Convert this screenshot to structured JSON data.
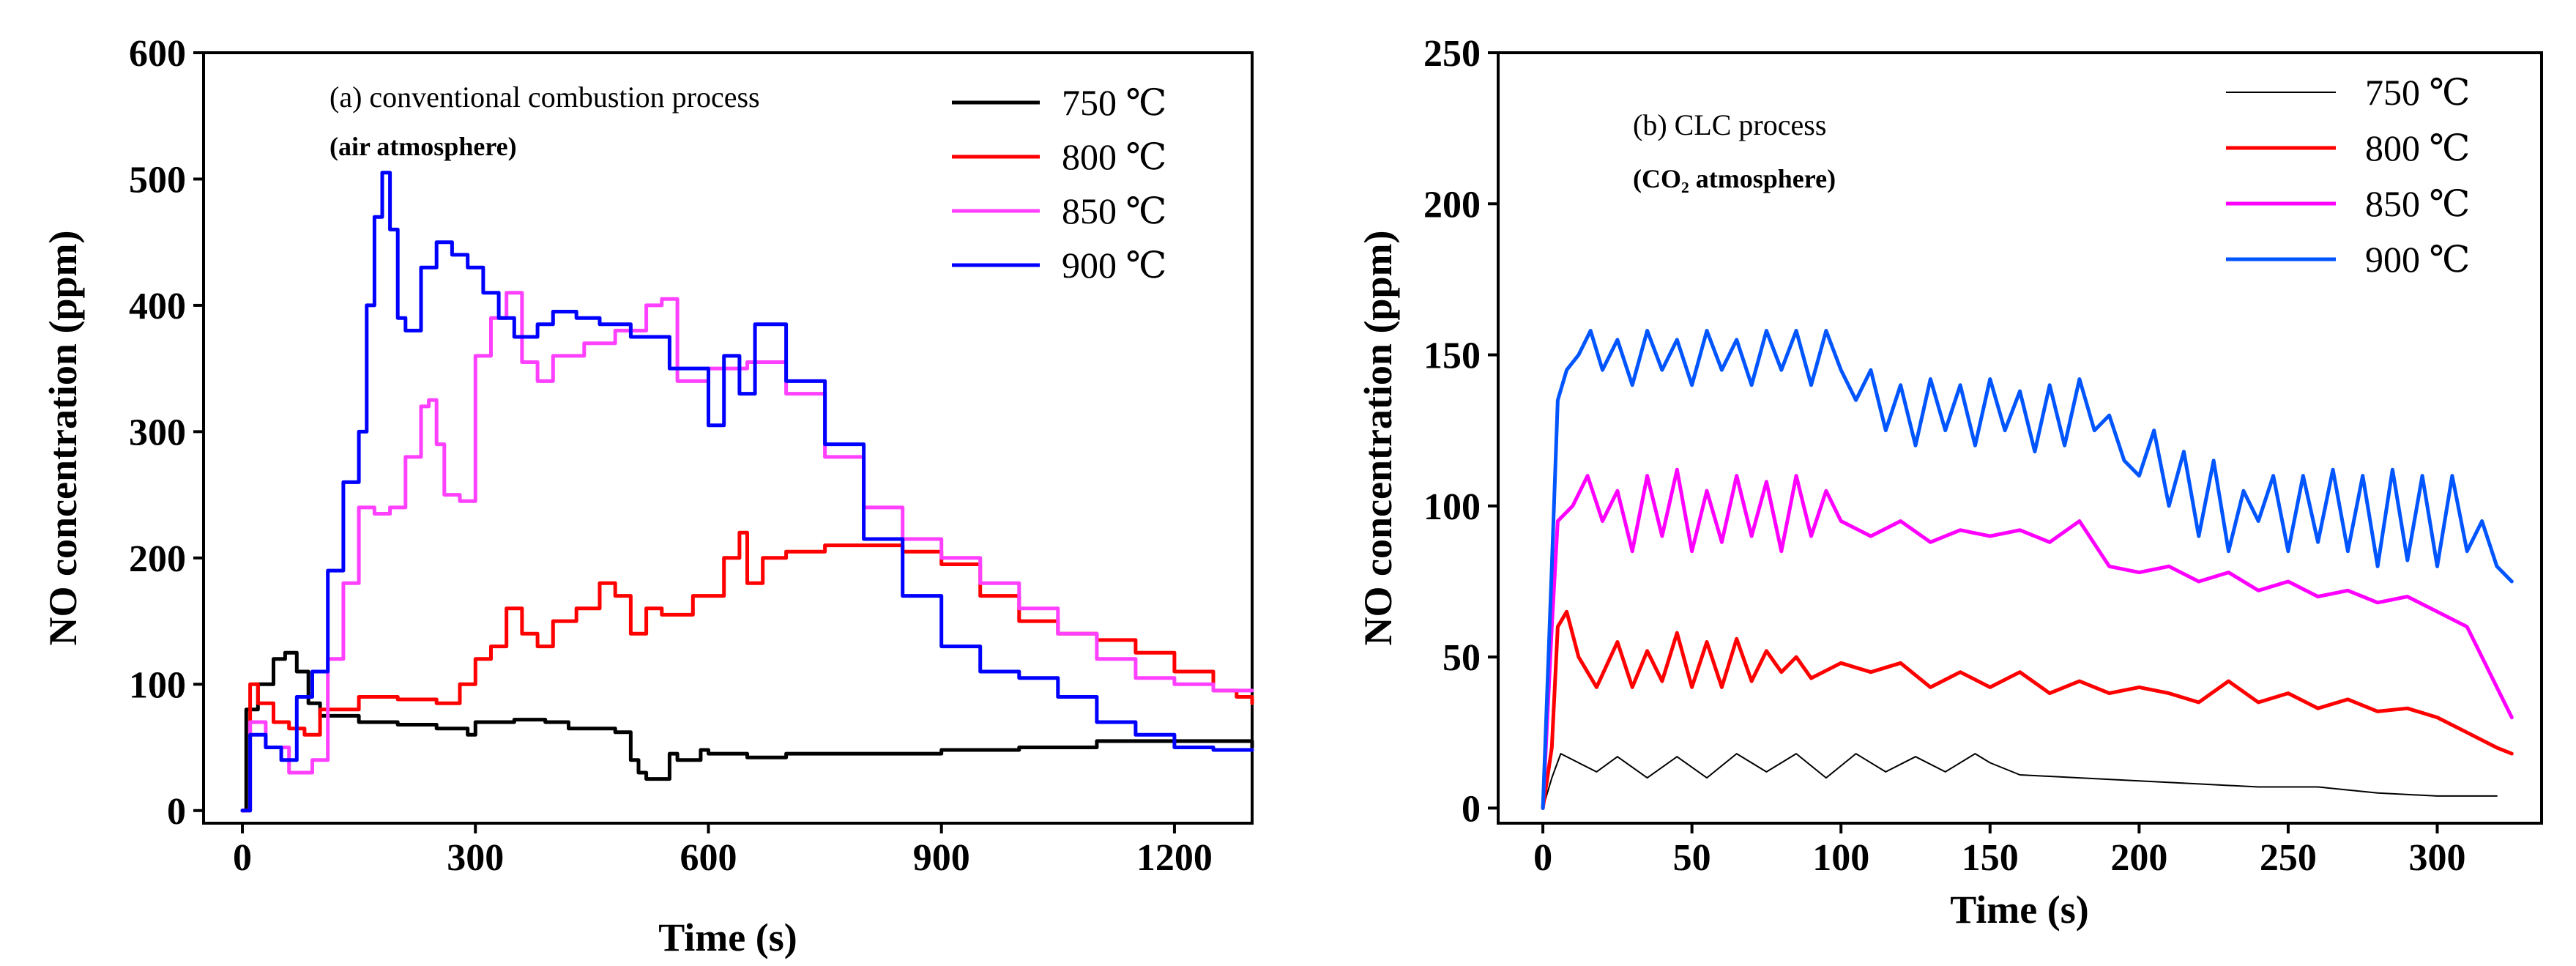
{
  "chart_data": [
    {
      "type": "line",
      "step": true,
      "title": "(a) conventional combustion process",
      "subtitle": "(air atmosphere)",
      "xlabel": "Time (s)",
      "ylabel": "NO concentration (ppm)",
      "xlim": [
        -50,
        1300
      ],
      "ylim": [
        -10,
        600
      ],
      "xticks": [
        0,
        300,
        600,
        900,
        1200
      ],
      "yticks": [
        0,
        100,
        200,
        300,
        400,
        500,
        600
      ],
      "xtick_labels": [
        "0",
        "300",
        "600",
        "900",
        "1200"
      ],
      "ytick_labels": [
        "0",
        "100",
        "200",
        "300",
        "400",
        "500",
        "600"
      ],
      "legend_position": "top-right",
      "series": [
        {
          "name": "750  ℃",
          "color": "#000000",
          "x": [
            0,
            5,
            20,
            40,
            55,
            70,
            85,
            100,
            150,
            200,
            250,
            290,
            300,
            350,
            390,
            420,
            480,
            500,
            510,
            520,
            550,
            560,
            590,
            600,
            650,
            700,
            800,
            900,
            1000,
            1100,
            1200,
            1300
          ],
          "y": [
            0,
            80,
            100,
            120,
            125,
            110,
            85,
            75,
            70,
            68,
            65,
            60,
            70,
            72,
            70,
            65,
            62,
            40,
            30,
            25,
            45,
            40,
            48,
            45,
            42,
            45,
            45,
            48,
            50,
            55,
            55,
            50
          ]
        },
        {
          "name": "800  ℃",
          "color": "#ff0000",
          "x": [
            0,
            10,
            20,
            40,
            60,
            80,
            100,
            150,
            200,
            250,
            280,
            300,
            320,
            340,
            360,
            380,
            400,
            430,
            460,
            480,
            500,
            520,
            540,
            580,
            620,
            640,
            650,
            670,
            700,
            750,
            800,
            850,
            900,
            950,
            1000,
            1050,
            1100,
            1150,
            1200,
            1250,
            1280,
            1300
          ],
          "y": [
            0,
            100,
            85,
            70,
            65,
            60,
            80,
            90,
            88,
            85,
            100,
            120,
            130,
            160,
            140,
            130,
            150,
            160,
            180,
            170,
            140,
            160,
            155,
            170,
            200,
            220,
            180,
            200,
            205,
            210,
            210,
            205,
            195,
            170,
            150,
            140,
            135,
            125,
            110,
            95,
            90,
            85
          ]
        },
        {
          "name": "850  ℃",
          "color": "#ff40ff",
          "x": [
            0,
            10,
            30,
            60,
            90,
            110,
            130,
            150,
            170,
            190,
            210,
            230,
            240,
            250,
            260,
            280,
            300,
            320,
            340,
            360,
            380,
            400,
            440,
            480,
            520,
            540,
            560,
            600,
            650,
            700,
            750,
            800,
            850,
            900,
            950,
            1000,
            1050,
            1100,
            1150,
            1200,
            1250,
            1300
          ],
          "y": [
            0,
            70,
            50,
            30,
            40,
            120,
            180,
            240,
            235,
            240,
            280,
            320,
            325,
            290,
            250,
            245,
            360,
            390,
            410,
            355,
            340,
            360,
            370,
            380,
            400,
            405,
            340,
            350,
            355,
            330,
            280,
            240,
            215,
            200,
            180,
            160,
            140,
            120,
            105,
            100,
            95,
            95
          ]
        },
        {
          "name": "900  ℃",
          "color": "#0000ff",
          "x": [
            0,
            10,
            30,
            50,
            70,
            90,
            110,
            130,
            150,
            160,
            170,
            180,
            190,
            200,
            210,
            230,
            250,
            270,
            290,
            310,
            330,
            350,
            380,
            400,
            430,
            460,
            500,
            550,
            600,
            620,
            640,
            660,
            700,
            750,
            800,
            850,
            900,
            950,
            1000,
            1050,
            1100,
            1150,
            1200,
            1250,
            1300
          ],
          "y": [
            0,
            60,
            50,
            40,
            90,
            110,
            190,
            260,
            300,
            400,
            470,
            505,
            460,
            390,
            380,
            430,
            450,
            440,
            430,
            410,
            390,
            375,
            385,
            395,
            390,
            385,
            375,
            350,
            305,
            360,
            330,
            385,
            340,
            290,
            215,
            170,
            130,
            110,
            105,
            90,
            70,
            60,
            50,
            48,
            48
          ]
        }
      ]
    },
    {
      "type": "line",
      "title": "(b) CLC process",
      "subtitle": "(CO₂ atmosphere)",
      "xlabel": "Time (s)",
      "ylabel": "NO concentration (ppm)",
      "xlim": [
        -15,
        335
      ],
      "ylim": [
        -5,
        250
      ],
      "xticks": [
        0,
        50,
        100,
        150,
        200,
        250,
        300
      ],
      "yticks": [
        0,
        50,
        100,
        150,
        200,
        250
      ],
      "xtick_labels": [
        "0",
        "50",
        "100",
        "150",
        "200",
        "250",
        "300"
      ],
      "ytick_labels": [
        "0",
        "50",
        "100",
        "150",
        "200",
        "250"
      ],
      "legend_position": "top-right",
      "series": [
        {
          "name": "750  ℃",
          "color": "#000000",
          "x": [
            0,
            3,
            6,
            10,
            18,
            25,
            35,
            45,
            55,
            65,
            75,
            85,
            95,
            105,
            115,
            125,
            135,
            145,
            150,
            160,
            180,
            200,
            220,
            240,
            260,
            280,
            300,
            320
          ],
          "y": [
            0,
            10,
            18,
            16,
            12,
            17,
            10,
            17,
            10,
            18,
            12,
            18,
            10,
            18,
            12,
            17,
            12,
            18,
            15,
            11,
            10,
            9,
            8,
            7,
            7,
            5,
            4,
            4
          ]
        },
        {
          "name": "800  ℃",
          "color": "#ff0000",
          "x": [
            0,
            3,
            5,
            8,
            12,
            18,
            25,
            30,
            35,
            40,
            45,
            50,
            55,
            60,
            65,
            70,
            75,
            80,
            85,
            90,
            100,
            110,
            120,
            130,
            140,
            150,
            160,
            170,
            180,
            190,
            200,
            210,
            220,
            230,
            240,
            250,
            260,
            270,
            280,
            290,
            300,
            310,
            320,
            325
          ],
          "y": [
            0,
            20,
            60,
            65,
            50,
            40,
            55,
            40,
            52,
            42,
            58,
            40,
            55,
            40,
            56,
            42,
            52,
            45,
            50,
            43,
            48,
            45,
            48,
            40,
            45,
            40,
            45,
            38,
            42,
            38,
            40,
            38,
            35,
            42,
            35,
            38,
            33,
            36,
            32,
            33,
            30,
            25,
            20,
            18
          ]
        },
        {
          "name": "850  ℃",
          "color": "#ff00ff",
          "x": [
            0,
            3,
            5,
            10,
            15,
            20,
            25,
            30,
            35,
            40,
            45,
            50,
            55,
            60,
            65,
            70,
            75,
            80,
            85,
            90,
            95,
            100,
            110,
            120,
            130,
            140,
            150,
            160,
            170,
            180,
            190,
            200,
            210,
            220,
            230,
            240,
            250,
            260,
            270,
            280,
            290,
            300,
            310,
            320,
            325
          ],
          "y": [
            0,
            60,
            95,
            100,
            110,
            95,
            105,
            85,
            110,
            90,
            112,
            85,
            105,
            88,
            110,
            90,
            108,
            85,
            110,
            90,
            105,
            95,
            90,
            95,
            88,
            92,
            90,
            92,
            88,
            95,
            80,
            78,
            80,
            75,
            78,
            72,
            75,
            70,
            72,
            68,
            70,
            65,
            60,
            40,
            30
          ]
        },
        {
          "name": "900  ℃",
          "color": "#0055ff",
          "x": [
            0,
            3,
            5,
            8,
            12,
            16,
            20,
            25,
            30,
            35,
            40,
            45,
            50,
            55,
            60,
            65,
            70,
            75,
            80,
            85,
            90,
            95,
            100,
            105,
            110,
            115,
            120,
            125,
            130,
            135,
            140,
            145,
            150,
            155,
            160,
            165,
            170,
            175,
            180,
            185,
            190,
            195,
            200,
            205,
            210,
            215,
            220,
            225,
            230,
            235,
            240,
            245,
            250,
            255,
            260,
            265,
            270,
            275,
            280,
            285,
            290,
            295,
            300,
            305,
            310,
            315,
            320,
            325
          ],
          "y": [
            0,
            80,
            135,
            145,
            150,
            158,
            145,
            155,
            140,
            158,
            145,
            155,
            140,
            158,
            145,
            155,
            140,
            158,
            145,
            158,
            140,
            158,
            145,
            135,
            145,
            125,
            140,
            120,
            142,
            125,
            140,
            120,
            142,
            125,
            138,
            118,
            140,
            120,
            142,
            125,
            130,
            115,
            110,
            125,
            100,
            118,
            90,
            115,
            85,
            105,
            95,
            110,
            85,
            110,
            88,
            112,
            85,
            110,
            80,
            112,
            82,
            110,
            80,
            110,
            85,
            95,
            80,
            75
          ]
        }
      ]
    }
  ]
}
